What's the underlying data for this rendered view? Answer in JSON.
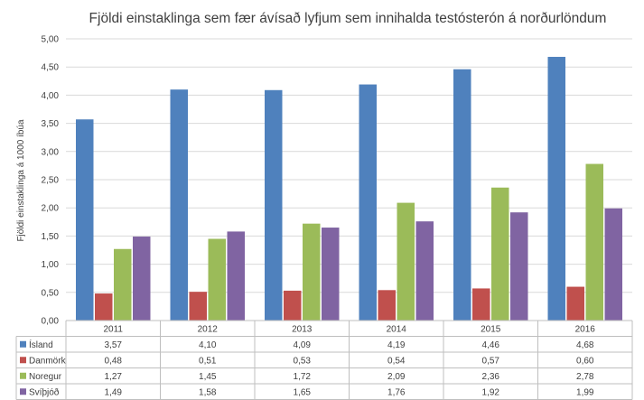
{
  "chart_data": {
    "type": "bar",
    "title": "Fjöldi einstaklinga sem fær ávísað lyfjum sem innihalda testósterón á norðurlöndum",
    "ylabel": "Fjöldi einstaklinga á 1000 íbúa",
    "xlabel": "",
    "categories": [
      "2011",
      "2012",
      "2013",
      "2014",
      "2015",
      "2016"
    ],
    "ylim": [
      0,
      5
    ],
    "yticks": [
      "0,00",
      "0,50",
      "1,00",
      "1,50",
      "2,00",
      "2,50",
      "3,00",
      "3,50",
      "4,00",
      "4,50",
      "5,00"
    ],
    "grid": true,
    "legend": "data-table",
    "series": [
      {
        "name": "Ísland",
        "color": "#4F81BD",
        "values": [
          3.57,
          4.1,
          4.09,
          4.19,
          4.46,
          4.68
        ],
        "labels": [
          "3,57",
          "4,10",
          "4,09",
          "4,19",
          "4,46",
          "4,68"
        ]
      },
      {
        "name": "Danmörk",
        "color": "#C0504D",
        "values": [
          0.48,
          0.51,
          0.53,
          0.54,
          0.57,
          0.6
        ],
        "labels": [
          "0,48",
          "0,51",
          "0,53",
          "0,54",
          "0,57",
          "0,60"
        ]
      },
      {
        "name": "Noregur",
        "color": "#9BBB59",
        "values": [
          1.27,
          1.45,
          1.72,
          2.09,
          2.36,
          2.78
        ],
        "labels": [
          "1,27",
          "1,45",
          "1,72",
          "2,09",
          "2,36",
          "2,78"
        ]
      },
      {
        "name": "Svíþjóð",
        "color": "#8064A2",
        "values": [
          1.49,
          1.58,
          1.65,
          1.76,
          1.92,
          1.99
        ],
        "labels": [
          "1,49",
          "1,58",
          "1,65",
          "1,76",
          "1,92",
          "1,99"
        ]
      }
    ]
  }
}
